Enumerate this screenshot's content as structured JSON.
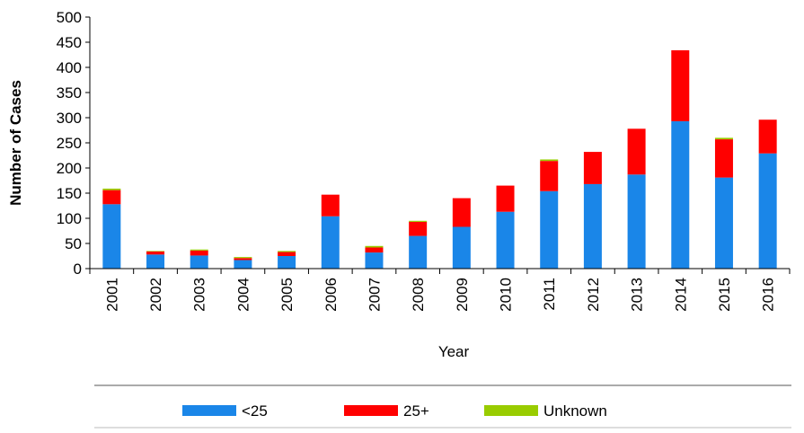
{
  "chart_data": {
    "type": "stacked_bar",
    "x_label": "Year",
    "y_label": "Number of Cases",
    "categories": [
      "2001",
      "2002",
      "2003",
      "2004",
      "2005",
      "2006",
      "2007",
      "2008",
      "2009",
      "2010",
      "2011",
      "2012",
      "2013",
      "2014",
      "2015",
      "2016"
    ],
    "series": [
      {
        "name": "<25",
        "color": "#1a86e8",
        "values": [
          128,
          28,
          26,
          17,
          25,
          104,
          32,
          65,
          83,
          113,
          154,
          168,
          187,
          293,
          181,
          229
        ]
      },
      {
        "name": "25+",
        "color": "#ff0000",
        "values": [
          28,
          6,
          10,
          4,
          8,
          43,
          10,
          28,
          57,
          52,
          60,
          64,
          91,
          141,
          76,
          67
        ]
      },
      {
        "name": "Unknown",
        "color": "#99cc00",
        "values": [
          3,
          1,
          2,
          2,
          2,
          0,
          3,
          2,
          0,
          0,
          3,
          0,
          0,
          0,
          3,
          0
        ]
      }
    ],
    "ylim": [
      0,
      500
    ],
    "yticks": [
      0,
      50,
      100,
      150,
      200,
      250,
      300,
      350,
      400,
      450,
      500
    ],
    "legend": "bottom"
  }
}
